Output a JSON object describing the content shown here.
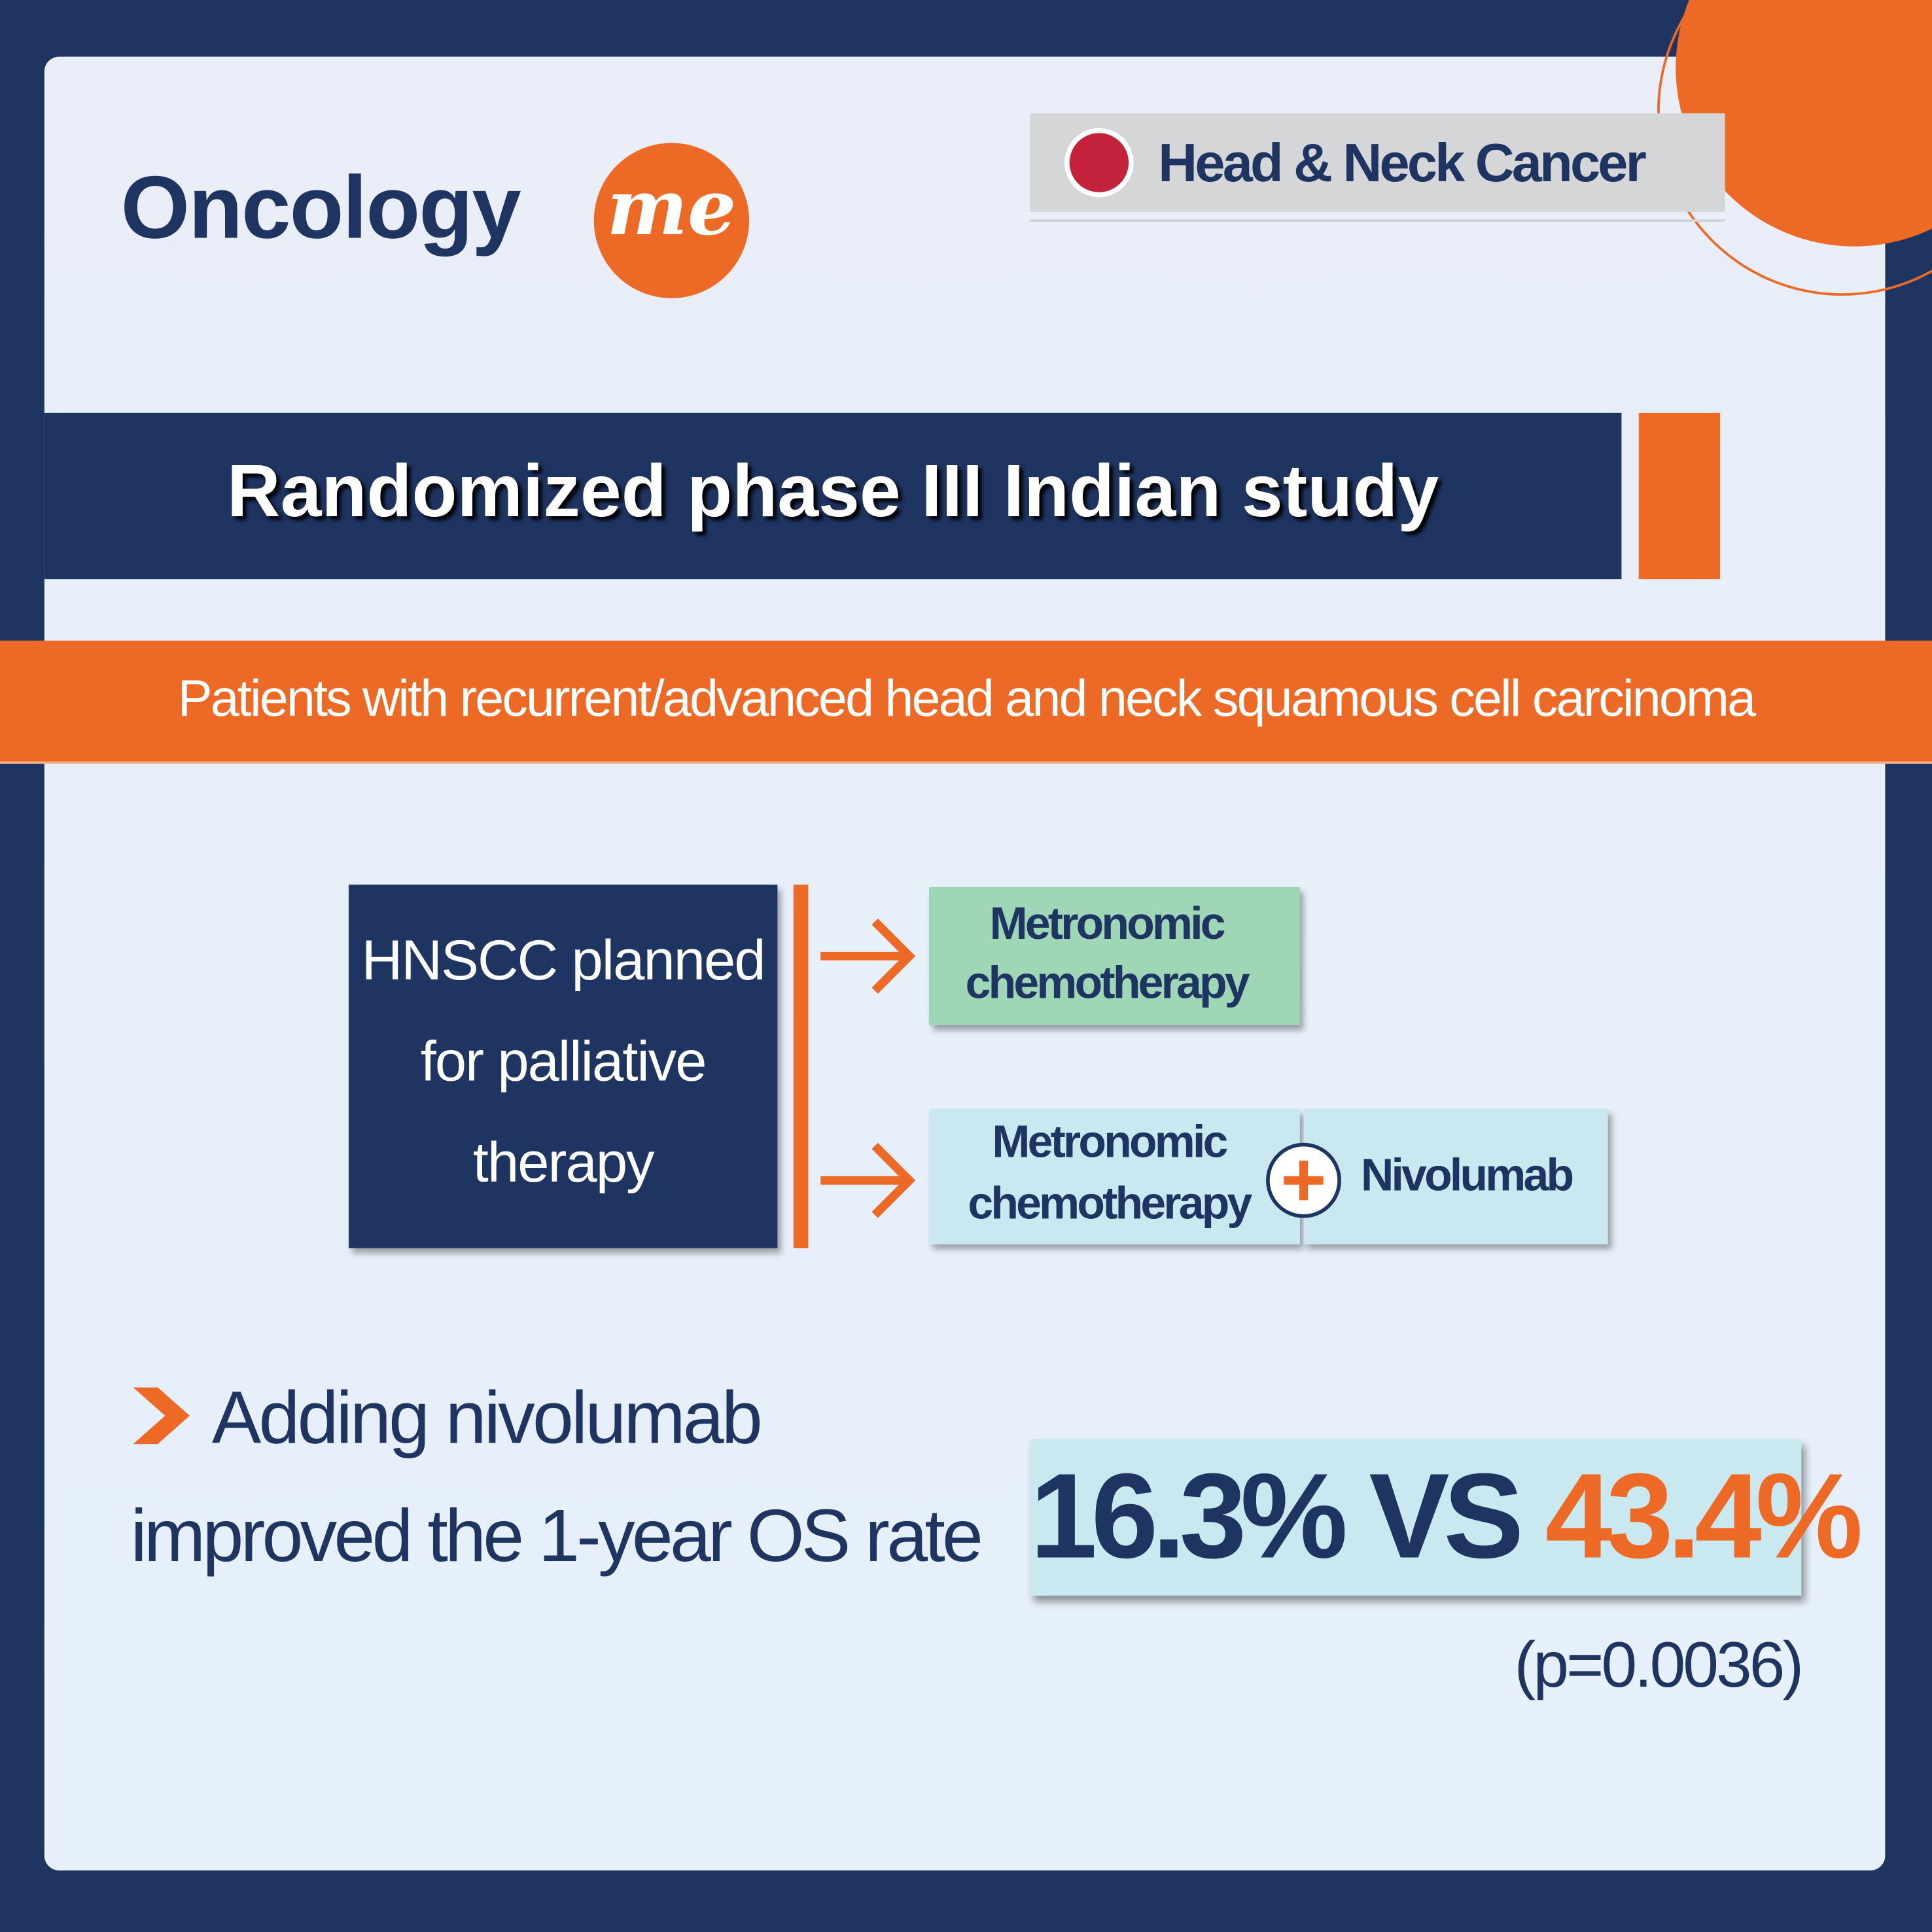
{
  "brand": {
    "name": "Oncology",
    "accent": "me"
  },
  "tag": "Head & Neck Cancer",
  "title": "Randomized phase III Indian study",
  "population": "Patients with recurrent/advanced head and neck squamous cell carcinoma",
  "design": {
    "source_lines": [
      "HNSCC planned",
      "for palliative",
      "therapy"
    ],
    "arms": [
      {
        "label_lines": [
          "Metronomic",
          "chemotherapy"
        ]
      },
      {
        "label_lines": [
          "Metronomic",
          "chemotherapy"
        ],
        "addition": "Nivolumab"
      }
    ]
  },
  "result": {
    "text_lines": [
      "Adding nivolumab",
      "improved the 1-year OS rate"
    ],
    "control": "16.3%",
    "comparator": "VS",
    "experimental": "43.4%",
    "p_value": "(p=0.0036)"
  }
}
